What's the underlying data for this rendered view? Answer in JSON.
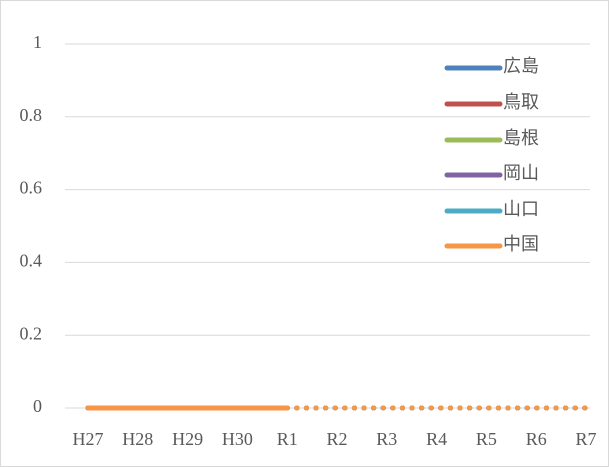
{
  "chart_data": {
    "type": "line",
    "categories": [
      "H27",
      "H28",
      "H29",
      "H30",
      "R1",
      "R2",
      "R3",
      "R4",
      "R5",
      "R6",
      "R7"
    ],
    "series": [
      {
        "name": "広島",
        "color": "#4f81bd",
        "values": [
          0,
          0,
          0,
          0,
          0,
          0,
          0,
          0,
          0,
          0,
          0
        ]
      },
      {
        "name": "鳥取",
        "color": "#c0504d",
        "values": [
          0,
          0,
          0,
          0,
          0,
          0,
          0,
          0,
          0,
          0,
          0
        ]
      },
      {
        "name": "島根",
        "color": "#9bbb59",
        "values": [
          0,
          0,
          0,
          0,
          0,
          0,
          0,
          0,
          0,
          0,
          0
        ]
      },
      {
        "name": "岡山",
        "color": "#8064a2",
        "values": [
          0,
          0,
          0,
          0,
          0,
          0,
          0,
          0,
          0,
          0,
          0
        ]
      },
      {
        "name": "山口",
        "color": "#4bacc6",
        "values": [
          0,
          0,
          0,
          0,
          0,
          0,
          0,
          0,
          0,
          0,
          0
        ]
      },
      {
        "name": "中国",
        "color": "#f79646",
        "values": [
          0,
          0,
          0,
          0,
          0,
          0,
          0,
          0,
          0,
          0,
          0
        ]
      }
    ],
    "dotted_from_index": 4,
    "ylim": [
      0,
      1
    ],
    "yticks": [
      0,
      0.2,
      0.4,
      0.6,
      0.8,
      1
    ],
    "grid": true,
    "legend": "right"
  }
}
